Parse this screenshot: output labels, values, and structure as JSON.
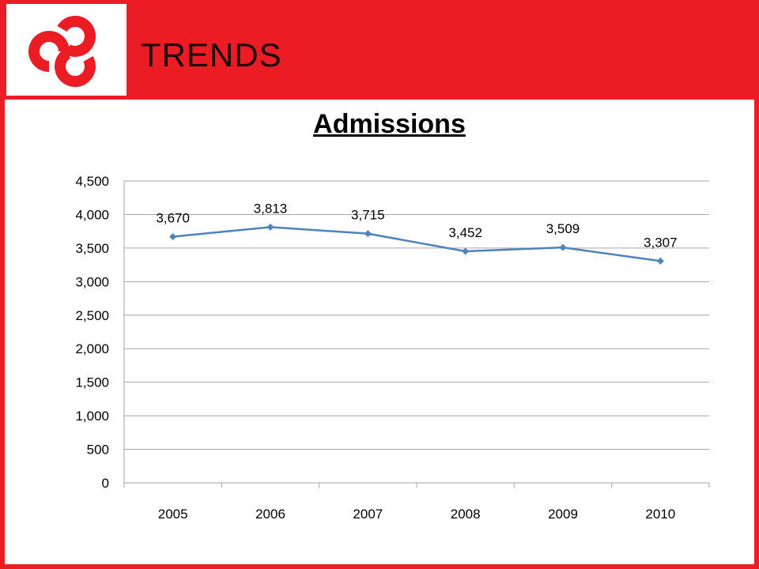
{
  "header": {
    "title": "TRENDS"
  },
  "chart_data": {
    "type": "line",
    "title": "Admissions",
    "xlabel": "",
    "ylabel": "",
    "categories": [
      "2005",
      "2006",
      "2007",
      "2008",
      "2009",
      "2010"
    ],
    "series": [
      {
        "values": [
          3670,
          3813,
          3715,
          3452,
          3509,
          3307
        ],
        "color": "#4f81bd"
      }
    ],
    "data_labels": [
      "3,670",
      "3,813",
      "3,715",
      "3,452",
      "3,509",
      "3,307"
    ],
    "ylim": [
      0,
      4500
    ],
    "yticks": [
      0,
      500,
      1000,
      1500,
      2000,
      2500,
      3000,
      3500,
      4000,
      4500
    ],
    "ytick_labels": [
      "0",
      "500",
      "1,000",
      "1,500",
      "2,000",
      "2,500",
      "3,000",
      "3,500",
      "4,000",
      "4,500"
    ],
    "grid": true,
    "legend": "none"
  },
  "colors": {
    "accent": "#ec1c24",
    "line": "#4f81bd",
    "grid": "#a6a6a6"
  },
  "icons": {
    "logo": "trefoil-logo-icon"
  }
}
